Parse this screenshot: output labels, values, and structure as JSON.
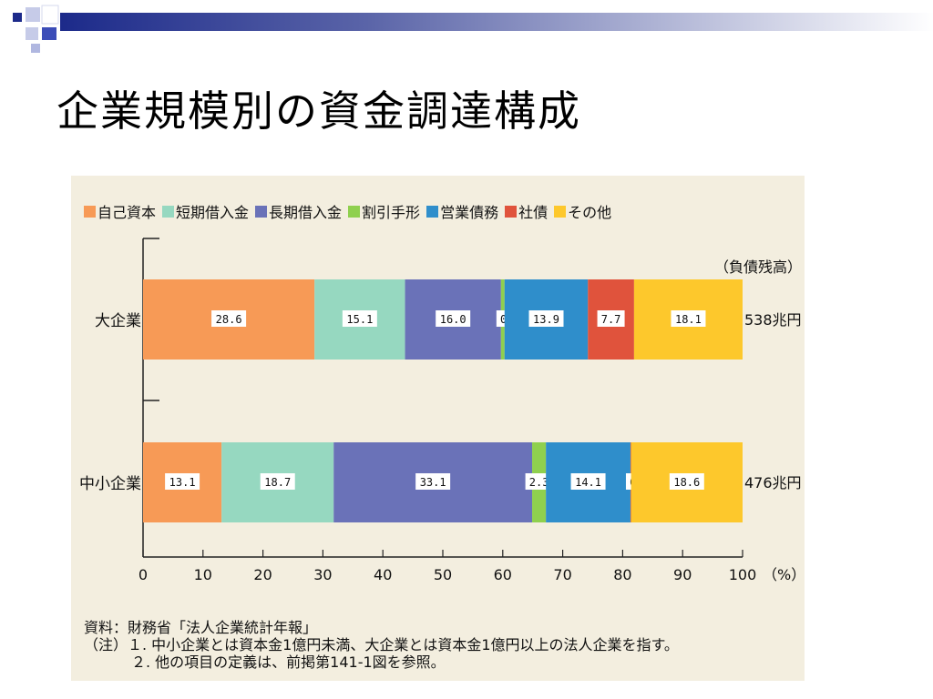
{
  "slide": {
    "title": "企業規模別の資金調達構成"
  },
  "theme": {
    "bar_navy": "#1c2a8a",
    "accent_blue": "#3b4db8",
    "panel_bg": "#f3eedf"
  },
  "chart_data": {
    "type": "bar",
    "orientation": "horizontal",
    "stacked": true,
    "categories": [
      "大企業",
      "中小企業"
    ],
    "series": [
      {
        "name": "自己資本",
        "color": "#f79a56",
        "values": [
          28.6,
          13.1
        ]
      },
      {
        "name": "短期借入金",
        "color": "#96d8c0",
        "values": [
          15.1,
          18.7
        ]
      },
      {
        "name": "長期借入金",
        "color": "#6a72b8",
        "values": [
          16.0,
          33.1
        ]
      },
      {
        "name": "割引手形",
        "color": "#8fd04e",
        "values": [
          0.6,
          2.3
        ]
      },
      {
        "name": "営業債務",
        "color": "#2f8ecb",
        "values": [
          13.9,
          14.1
        ]
      },
      {
        "name": "社債",
        "color": "#e0533c",
        "values": [
          7.7,
          0.1
        ]
      },
      {
        "name": "その他",
        "color": "#fdc82c",
        "values": [
          18.1,
          18.6
        ]
      }
    ],
    "totals": [
      "538兆円",
      "476兆円"
    ],
    "totals_header": "（負債残高）",
    "xlim": [
      0,
      100
    ],
    "xticks": [
      "0",
      "10",
      "20",
      "30",
      "40",
      "50",
      "60",
      "70",
      "80",
      "90",
      "100"
    ],
    "xunit": "（%）",
    "grid": false,
    "legend_position": "top",
    "source": "資料：財務省「法人企業統計年報」",
    "notes": [
      "（注）１. 中小企業とは資本金1億円未満、大企業とは資本金1億円以上の法人企業を指す。",
      "２. 他の項目の定義は、前掲第141-1図を参照。"
    ]
  }
}
